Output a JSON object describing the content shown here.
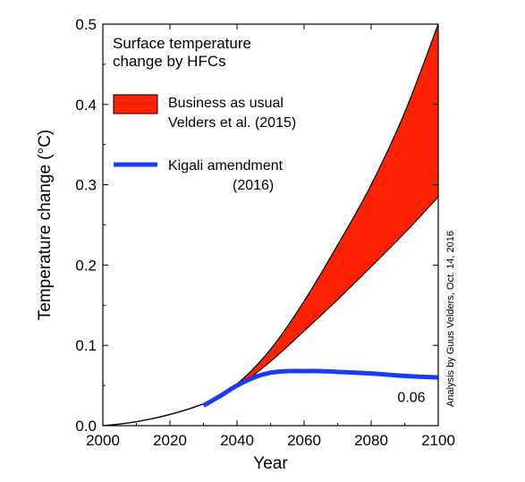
{
  "chart_data": {
    "type": "area",
    "xlabel": "Year",
    "ylabel": "Temperature change (°C)",
    "xlim": [
      2000,
      2100
    ],
    "ylim": [
      0,
      0.5
    ],
    "xticks": [
      2000,
      2020,
      2040,
      2060,
      2080,
      2100
    ],
    "yticks": [
      0.0,
      0.1,
      0.2,
      0.3,
      0.4,
      0.5
    ],
    "xtick_labels": [
      "2000",
      "2020",
      "2040",
      "2060",
      "2080",
      "2100"
    ],
    "ytick_labels": [
      "0.0",
      "0.1",
      "0.2",
      "0.3",
      "0.4",
      "0.5"
    ],
    "grid": false,
    "legend_title": [
      "Surface temperature",
      "change by HFCs"
    ],
    "legend_position": "top-left",
    "series": [
      {
        "name": [
          "Business as usual",
          "Velders et al. (2015)"
        ],
        "kind": "band",
        "color": "#ff2200",
        "x": [
          2030,
          2040,
          2050,
          2060,
          2070,
          2080,
          2090,
          2100
        ],
        "lower": [
          0.027,
          0.048,
          0.08,
          0.118,
          0.157,
          0.198,
          0.24,
          0.285
        ],
        "upper": [
          0.027,
          0.052,
          0.095,
          0.155,
          0.225,
          0.3,
          0.39,
          0.5
        ]
      },
      {
        "name": [
          "Kigali amendment",
          "(2016)"
        ],
        "kind": "line",
        "color": "#1a3cff",
        "x": [
          2030,
          2035,
          2040,
          2045,
          2050,
          2055,
          2060,
          2065,
          2070,
          2080,
          2090,
          2100
        ],
        "y": [
          0.025,
          0.037,
          0.05,
          0.06,
          0.066,
          0.068,
          0.068,
          0.068,
          0.067,
          0.065,
          0.062,
          0.06
        ]
      },
      {
        "name": "",
        "kind": "history",
        "color": "#000000",
        "x": [
          2000,
          2005,
          2010,
          2015,
          2020,
          2025,
          2030
        ],
        "y": [
          0.0,
          0.002,
          0.005,
          0.009,
          0.014,
          0.02,
          0.027
        ]
      }
    ],
    "annotations": [
      {
        "text": "0.06",
        "x": 2092,
        "y": 0.035
      }
    ],
    "credit": "Analysis by Guus Velders, Oct. 14, 2016"
  }
}
